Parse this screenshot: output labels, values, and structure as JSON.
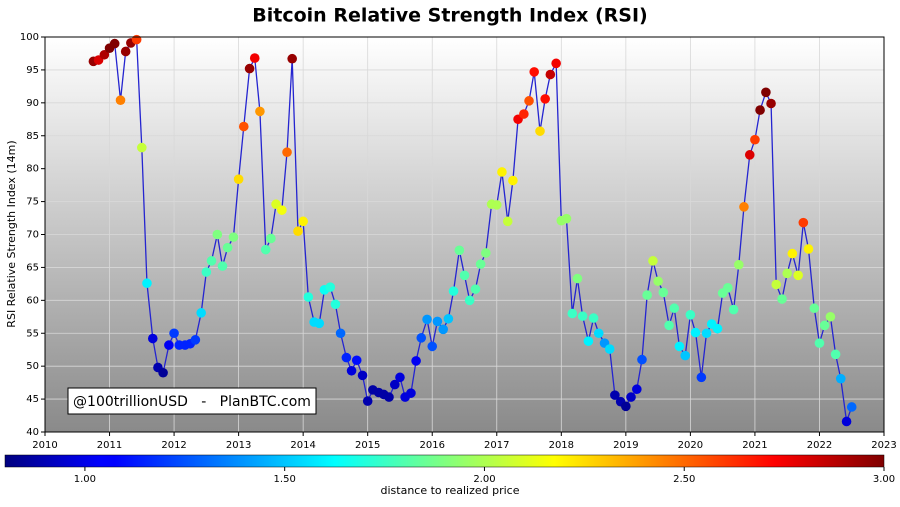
{
  "chart_data": {
    "type": "scatter",
    "title": "Bitcoin Relative Strength Index (RSI)",
    "y_label": "RSI Relative Strength Index (14m)",
    "annotation": "@100trillionUSD   -   PlanBTC.com",
    "xlim": [
      2010,
      2023
    ],
    "xticks": [
      2010,
      2011,
      2012,
      2013,
      2014,
      2015,
      2016,
      2017,
      2018,
      2019,
      2020,
      2021,
      2022,
      2023
    ],
    "ylim": [
      40,
      100
    ],
    "yticks": [
      40,
      45,
      50,
      55,
      60,
      65,
      70,
      75,
      80,
      85,
      90,
      95,
      100
    ],
    "grid": true,
    "line_color": "#2424d0",
    "colorbar": {
      "label": "distance to realized price",
      "lim": [
        0.8,
        3.0
      ],
      "colormap": "jet",
      "ticks": [
        {
          "value": 1,
          "label": "1.00"
        },
        {
          "value": 1.5,
          "label": "1.50"
        },
        {
          "value": 2,
          "label": "2.00"
        },
        {
          "value": 2.5,
          "label": "2.50"
        },
        {
          "value": 3,
          "label": "3.00"
        }
      ]
    },
    "x": [
      2010.75,
      2010.83,
      2010.92,
      2011.0,
      2011.08,
      2011.17,
      2011.25,
      2011.33,
      2011.42,
      2011.5,
      2011.58,
      2011.67,
      2011.75,
      2011.83,
      2011.92,
      2012.0,
      2012.08,
      2012.17,
      2012.25,
      2012.33,
      2012.42,
      2012.5,
      2012.58,
      2012.67,
      2012.75,
      2012.83,
      2012.92,
      2013.0,
      2013.08,
      2013.17,
      2013.25,
      2013.33,
      2013.42,
      2013.5,
      2013.58,
      2013.67,
      2013.75,
      2013.83,
      2013.92,
      2014.0,
      2014.08,
      2014.17,
      2014.25,
      2014.33,
      2014.42,
      2014.5,
      2014.58,
      2014.67,
      2014.75,
      2014.83,
      2014.92,
      2015.0,
      2015.08,
      2015.17,
      2015.25,
      2015.33,
      2015.42,
      2015.5,
      2015.58,
      2015.67,
      2015.75,
      2015.83,
      2015.92,
      2016.0,
      2016.08,
      2016.17,
      2016.25,
      2016.33,
      2016.42,
      2016.5,
      2016.58,
      2016.67,
      2016.75,
      2016.83,
      2016.92,
      2017.0,
      2017.08,
      2017.17,
      2017.25,
      2017.33,
      2017.42,
      2017.5,
      2017.58,
      2017.67,
      2017.75,
      2017.83,
      2017.92,
      2018.0,
      2018.08,
      2018.17,
      2018.25,
      2018.33,
      2018.42,
      2018.5,
      2018.58,
      2018.67,
      2018.75,
      2018.83,
      2018.92,
      2019.0,
      2019.08,
      2019.17,
      2019.25,
      2019.33,
      2019.42,
      2019.5,
      2019.58,
      2019.67,
      2019.75,
      2019.83,
      2019.92,
      2020.0,
      2020.08,
      2020.17,
      2020.25,
      2020.33,
      2020.42,
      2020.5,
      2020.58,
      2020.67,
      2020.75,
      2020.83,
      2020.92,
      2021.0,
      2021.08,
      2021.17,
      2021.25,
      2021.33,
      2021.42,
      2021.5,
      2021.58,
      2021.67,
      2021.75,
      2021.83,
      2021.92,
      2022.0,
      2022.08,
      2022.17,
      2022.25,
      2022.33,
      2022.42,
      2022.5
    ],
    "values": [
      96.3,
      96.5,
      97.3,
      98.3,
      99.0,
      90.4,
      97.8,
      99.1,
      99.6,
      83.2,
      62.6,
      54.2,
      49.8,
      49.0,
      53.2,
      55.0,
      53.2,
      53.2,
      53.4,
      54.0,
      58.1,
      64.3,
      66.0,
      70.0,
      65.2,
      68.0,
      69.6,
      78.4,
      86.4,
      95.2,
      96.8,
      88.7,
      67.7,
      69.4,
      74.6,
      73.7,
      82.5,
      96.7,
      70.5,
      72.0,
      60.5,
      56.7,
      56.5,
      61.6,
      62.0,
      59.4,
      55.0,
      51.3,
      49.3,
      50.9,
      48.6,
      44.7,
      46.4,
      46.0,
      45.7,
      45.3,
      47.2,
      48.3,
      45.3,
      45.9,
      50.8,
      54.3,
      57.1,
      53.0,
      56.8,
      55.6,
      57.2,
      61.4,
      67.6,
      63.8,
      60.0,
      61.7,
      65.5,
      67.2,
      74.6,
      74.5,
      79.5,
      72.0,
      78.2,
      87.5,
      88.3,
      90.3,
      94.7,
      85.7,
      90.6,
      94.3,
      96.0,
      72.1,
      72.4,
      58.0,
      63.3,
      57.6,
      53.8,
      57.3,
      55.0,
      53.5,
      52.6,
      45.6,
      44.6,
      43.9,
      45.3,
      46.5,
      51.0,
      60.8,
      66.0,
      62.9,
      61.2,
      56.2,
      58.8,
      53.0,
      51.6,
      57.8,
      55.1,
      48.3,
      55.0,
      56.4,
      55.7,
      61.1,
      61.9,
      58.6,
      65.4,
      74.2,
      82.1,
      84.4,
      88.9,
      91.6,
      89.9,
      62.4,
      60.2,
      64.1,
      67.1,
      63.8,
      71.8,
      67.8,
      58.8,
      53.5,
      56.2,
      57.5,
      51.8,
      48.1,
      41.6,
      43.8
    ],
    "color_values": [
      2.95,
      2.8,
      2.9,
      3.0,
      3.0,
      2.45,
      2.95,
      2.95,
      2.6,
      2.05,
      1.6,
      1.0,
      0.9,
      0.85,
      1.05,
      1.2,
      1.15,
      1.15,
      1.15,
      1.2,
      1.55,
      1.75,
      1.8,
      1.9,
      1.8,
      1.85,
      1.9,
      2.25,
      2.55,
      2.95,
      2.75,
      2.4,
      1.8,
      1.85,
      2.1,
      2.15,
      2.5,
      2.95,
      2.25,
      2.2,
      1.7,
      1.55,
      1.55,
      1.65,
      1.7,
      1.7,
      1.3,
      1.15,
      1.0,
      1.1,
      0.95,
      0.9,
      0.88,
      0.88,
      0.88,
      0.88,
      0.95,
      1.0,
      1.0,
      1.0,
      1.05,
      1.25,
      1.4,
      1.25,
      1.4,
      1.4,
      1.5,
      1.7,
      1.85,
      1.8,
      1.75,
      1.8,
      1.85,
      1.9,
      2.0,
      2.0,
      2.2,
      2.05,
      2.2,
      2.75,
      2.65,
      2.55,
      2.7,
      2.25,
      2.7,
      2.85,
      2.75,
      1.95,
      1.95,
      1.75,
      1.9,
      1.75,
      1.6,
      1.75,
      1.55,
      1.4,
      1.55,
      0.9,
      0.9,
      0.85,
      0.95,
      1.0,
      1.25,
      1.85,
      2.05,
      1.95,
      1.85,
      1.8,
      1.8,
      1.6,
      1.5,
      1.75,
      1.6,
      1.2,
      1.55,
      1.6,
      1.6,
      1.85,
      1.85,
      1.8,
      1.95,
      2.45,
      2.8,
      2.6,
      3.0,
      3.0,
      2.95,
      2.05,
      1.85,
      2.0,
      2.2,
      2.1,
      2.6,
      2.2,
      1.85,
      1.8,
      1.85,
      1.95,
      1.8,
      1.45,
      1.0,
      1.3
    ]
  }
}
